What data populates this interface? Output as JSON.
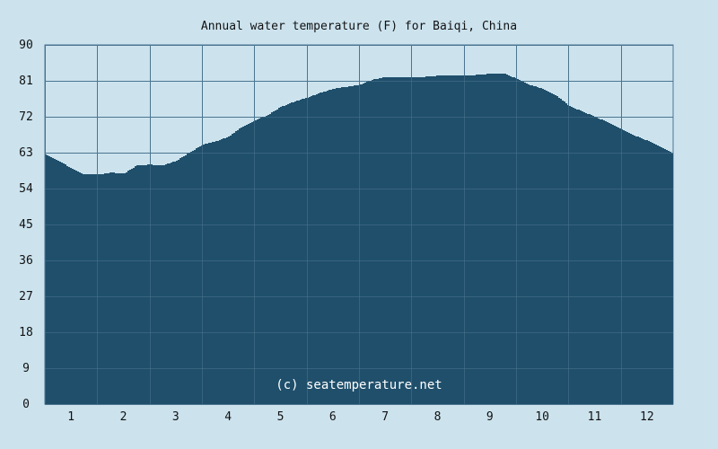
{
  "chart_data": {
    "type": "area",
    "title": "Annual water temperature (F) for Baiqi, China",
    "watermark": "(c) seatemperature.net",
    "xlabel": "",
    "ylabel": "",
    "x_ticks": [
      "1",
      "2",
      "3",
      "4",
      "5",
      "6",
      "7",
      "8",
      "9",
      "10",
      "11",
      "12"
    ],
    "y_ticks": [
      "0",
      "9",
      "18",
      "27",
      "36",
      "45",
      "54",
      "63",
      "72",
      "81",
      "90"
    ],
    "xlim": [
      0.5,
      12.5
    ],
    "ylim": [
      0,
      90
    ],
    "grid": true,
    "colors": {
      "background": "#cce3ee",
      "fill": "#1f4f6b",
      "grid": "#4d7590",
      "text": "#111111",
      "watermark": "#ffffff"
    },
    "series": [
      {
        "x": [
          0.5,
          0.75,
          1.0,
          1.25,
          1.5,
          1.75,
          2.0,
          2.25,
          2.5,
          2.75,
          3.0,
          3.25,
          3.5,
          3.75,
          4.0,
          4.25,
          4.5,
          4.75,
          5.0,
          5.25,
          5.5,
          5.75,
          6.0,
          6.25,
          6.5,
          6.75,
          7.0,
          7.25,
          7.5,
          7.75,
          8.0,
          8.25,
          8.5,
          8.75,
          9.0,
          9.25,
          9.5,
          9.75,
          10.0,
          10.25,
          10.5,
          10.75,
          11.0,
          11.25,
          11.5,
          11.75,
          12.0,
          12.25,
          12.5
        ],
        "values": [
          62.5,
          61.0,
          59.0,
          57.5,
          57.5,
          58.0,
          57.8,
          59.8,
          60.0,
          59.8,
          61.0,
          63.0,
          65.0,
          65.8,
          67.0,
          69.5,
          71.0,
          72.5,
          74.5,
          75.8,
          76.8,
          78.0,
          79.0,
          79.5,
          80.0,
          81.3,
          82.0,
          82.0,
          82.0,
          82.0,
          82.3,
          82.3,
          82.3,
          82.5,
          82.8,
          82.9,
          81.5,
          80.0,
          79.0,
          77.3,
          74.8,
          73.3,
          72.0,
          70.5,
          68.8,
          67.3,
          66.0,
          64.5,
          62.6
        ]
      }
    ]
  }
}
